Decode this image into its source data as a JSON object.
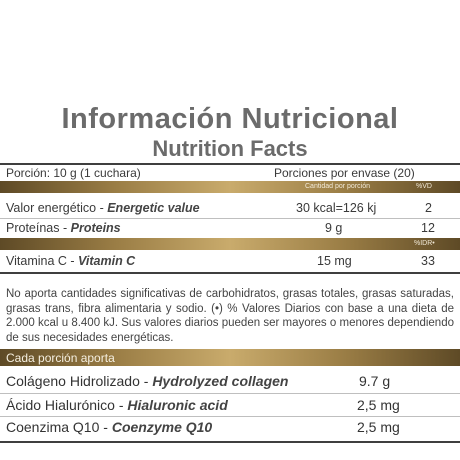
{
  "header": {
    "title_es": "Información Nutricional",
    "title_en": "Nutrition Facts"
  },
  "serving": {
    "porcion": "Porción: 10 g (1 cuchara)",
    "porciones_envase": "Porciones por envase (20)"
  },
  "columns": {
    "cantidad": "Cantidad por porción",
    "vd": "%VD",
    "idr": "%IDR•"
  },
  "nutrients": [
    {
      "label": "Valor energético - ",
      "label_en": "Energetic value",
      "amount": "30 kcal=126 kj",
      "pct": "2"
    },
    {
      "label": "Proteínas - ",
      "label_en": "Proteins",
      "amount": "9 g",
      "pct": "12"
    },
    {
      "label": "Vitamina C - ",
      "label_en": "Vitamin C",
      "amount": "15 mg",
      "pct": "33"
    }
  ],
  "note": "No aporta cantidades significativas de carbohidratos, grasas totales, grasas saturadas, grasas trans, fibra alimentaria y sodio. (•) % Valores Diarios con base a una dieta de 2.000 kcal u 8.400 kJ. Sus valores diarios pueden ser mayores o menores dependiendo de sus necesidades energéticas.",
  "per_serving": {
    "heading": "Cada porción aporta",
    "items": [
      {
        "label": "Colágeno Hidrolizado - ",
        "label_en": "Hydrolyzed collagen",
        "amount": "9.7 g"
      },
      {
        "label": "Ácido Hialurónico - ",
        "label_en": "Hialuronic acid",
        "amount": "2,5 mg"
      },
      {
        "label": "Coenzima Q10 - ",
        "label_en": "Coenzyme Q10",
        "amount": "2,5 mg"
      }
    ]
  },
  "colors": {
    "gold": "#9a7d45",
    "title": "#6b6b6b",
    "text": "#3a3a3a"
  }
}
